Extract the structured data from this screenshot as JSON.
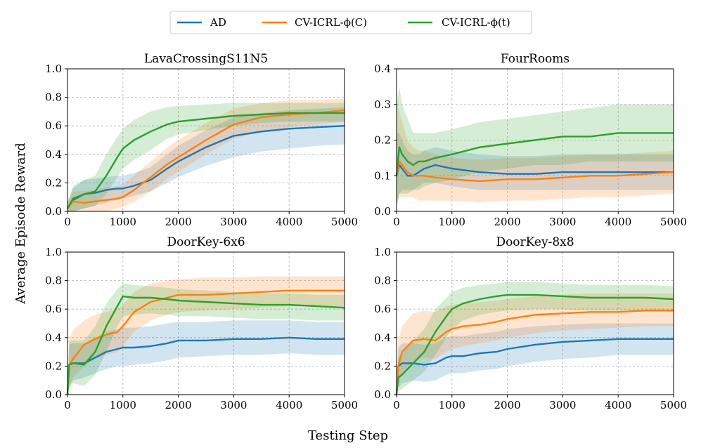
{
  "figure": {
    "xlabel": "Testing Step",
    "ylabel": "Average Episode Reward"
  },
  "legend": [
    {
      "name": "AD",
      "color": "#1f77b4"
    },
    {
      "name": "CV-ICRL-ϕ(C)",
      "color": "#ff7f0e"
    },
    {
      "name": "CV-ICRL-ϕ(t)",
      "color": "#2ca02c"
    }
  ],
  "chart_data": [
    {
      "type": "line",
      "title": "LavaCrossingS11N5",
      "xlim": [
        0,
        5000
      ],
      "ylim": [
        0,
        1.0
      ],
      "xticks": [
        "0",
        "1000",
        "2000",
        "3000",
        "4000",
        "5000"
      ],
      "yticks": [
        "0.0",
        "0.2",
        "0.4",
        "0.6",
        "0.8",
        "1.0"
      ],
      "x": [
        0,
        100,
        300,
        500,
        700,
        900,
        1000,
        1200,
        1500,
        1800,
        2000,
        2500,
        3000,
        3500,
        4000,
        4500,
        5000
      ],
      "series": [
        {
          "name": "AD",
          "color": "#1f77b4",
          "values": [
            0.02,
            0.08,
            0.12,
            0.13,
            0.15,
            0.16,
            0.16,
            0.18,
            0.22,
            0.3,
            0.35,
            0.45,
            0.53,
            0.56,
            0.58,
            0.59,
            0.6
          ],
          "lower": [
            0.0,
            0.0,
            0.02,
            0.04,
            0.06,
            0.08,
            0.09,
            0.11,
            0.14,
            0.2,
            0.24,
            0.32,
            0.38,
            0.42,
            0.44,
            0.46,
            0.47
          ],
          "upper": [
            0.06,
            0.16,
            0.22,
            0.23,
            0.24,
            0.25,
            0.25,
            0.27,
            0.31,
            0.4,
            0.46,
            0.57,
            0.66,
            0.69,
            0.71,
            0.72,
            0.73
          ]
        },
        {
          "name": "CV-ICRL-ϕ(C)",
          "color": "#ff7f0e",
          "values": [
            0.02,
            0.07,
            0.06,
            0.07,
            0.08,
            0.09,
            0.1,
            0.15,
            0.24,
            0.33,
            0.38,
            0.5,
            0.61,
            0.66,
            0.68,
            0.69,
            0.71
          ],
          "lower": [
            0.0,
            0.0,
            0.0,
            0.0,
            0.0,
            0.02,
            0.03,
            0.07,
            0.14,
            0.23,
            0.28,
            0.4,
            0.51,
            0.56,
            0.59,
            0.61,
            0.63
          ],
          "upper": [
            0.06,
            0.14,
            0.14,
            0.15,
            0.17,
            0.18,
            0.19,
            0.25,
            0.35,
            0.45,
            0.5,
            0.62,
            0.72,
            0.76,
            0.78,
            0.78,
            0.79
          ]
        },
        {
          "name": "CV-ICRL-ϕ(t)",
          "color": "#2ca02c",
          "values": [
            0.02,
            0.09,
            0.12,
            0.14,
            0.25,
            0.38,
            0.44,
            0.5,
            0.56,
            0.61,
            0.63,
            0.65,
            0.67,
            0.68,
            0.69,
            0.69,
            0.69
          ],
          "lower": [
            0.0,
            0.0,
            0.02,
            0.04,
            0.12,
            0.24,
            0.3,
            0.36,
            0.43,
            0.51,
            0.54,
            0.57,
            0.6,
            0.62,
            0.63,
            0.63,
            0.63
          ],
          "upper": [
            0.06,
            0.18,
            0.22,
            0.25,
            0.4,
            0.52,
            0.58,
            0.64,
            0.7,
            0.73,
            0.74,
            0.75,
            0.76,
            0.76,
            0.76,
            0.76,
            0.76
          ]
        }
      ]
    },
    {
      "type": "line",
      "title": "FourRooms",
      "xlim": [
        0,
        5000
      ],
      "ylim": [
        0,
        0.4
      ],
      "xticks": [
        "0",
        "1000",
        "2000",
        "3000",
        "4000",
        "5000"
      ],
      "yticks": [
        "0.0",
        "0.1",
        "0.2",
        "0.3",
        "0.4"
      ],
      "x": [
        0,
        50,
        100,
        200,
        300,
        400,
        500,
        700,
        1000,
        1500,
        2000,
        2500,
        3000,
        3500,
        4000,
        4500,
        5000
      ],
      "series": [
        {
          "name": "AD",
          "color": "#1f77b4",
          "values": [
            0.1,
            0.13,
            0.12,
            0.1,
            0.1,
            0.11,
            0.12,
            0.13,
            0.12,
            0.11,
            0.105,
            0.105,
            0.11,
            0.11,
            0.11,
            0.11,
            0.11
          ],
          "lower": [
            0.01,
            0.05,
            0.06,
            0.06,
            0.06,
            0.07,
            0.08,
            0.08,
            0.07,
            0.06,
            0.06,
            0.06,
            0.06,
            0.06,
            0.06,
            0.06,
            0.06
          ],
          "upper": [
            0.22,
            0.22,
            0.2,
            0.17,
            0.16,
            0.16,
            0.17,
            0.18,
            0.17,
            0.16,
            0.155,
            0.155,
            0.16,
            0.16,
            0.16,
            0.16,
            0.16
          ]
        },
        {
          "name": "CV-ICRL-ϕ(C)",
          "color": "#ff7f0e",
          "values": [
            0.1,
            0.14,
            0.13,
            0.11,
            0.1,
            0.1,
            0.1,
            0.095,
            0.09,
            0.085,
            0.09,
            0.09,
            0.095,
            0.1,
            0.1,
            0.105,
            0.11
          ],
          "lower": [
            0.02,
            0.04,
            0.04,
            0.04,
            0.04,
            0.03,
            0.03,
            0.03,
            0.03,
            0.025,
            0.03,
            0.03,
            0.035,
            0.04,
            0.04,
            0.045,
            0.05
          ],
          "upper": [
            0.3,
            0.28,
            0.25,
            0.2,
            0.18,
            0.17,
            0.17,
            0.16,
            0.15,
            0.145,
            0.15,
            0.15,
            0.155,
            0.16,
            0.16,
            0.165,
            0.17
          ]
        },
        {
          "name": "CV-ICRL-ϕ(t)",
          "color": "#2ca02c",
          "values": [
            0.1,
            0.18,
            0.16,
            0.14,
            0.13,
            0.14,
            0.14,
            0.15,
            0.16,
            0.18,
            0.19,
            0.2,
            0.21,
            0.21,
            0.22,
            0.22,
            0.22
          ],
          "lower": [
            0.02,
            0.05,
            0.05,
            0.05,
            0.06,
            0.06,
            0.07,
            0.08,
            0.09,
            0.11,
            0.12,
            0.13,
            0.13,
            0.14,
            0.14,
            0.14,
            0.14
          ],
          "upper": [
            0.3,
            0.35,
            0.3,
            0.26,
            0.22,
            0.22,
            0.22,
            0.22,
            0.23,
            0.25,
            0.26,
            0.27,
            0.28,
            0.29,
            0.3,
            0.3,
            0.3
          ]
        }
      ]
    },
    {
      "type": "line",
      "title": "DoorKey-6x6",
      "xlim": [
        0,
        5000
      ],
      "ylim": [
        0,
        1.0
      ],
      "xticks": [
        "0",
        "1000",
        "2000",
        "3000",
        "4000",
        "5000"
      ],
      "yticks": [
        "0.0",
        "0.2",
        "0.4",
        "0.6",
        "0.8",
        "1.0"
      ],
      "x": [
        0,
        30,
        100,
        300,
        500,
        700,
        900,
        1000,
        1200,
        1500,
        1800,
        2000,
        2500,
        3000,
        3500,
        4000,
        4500,
        5000
      ],
      "series": [
        {
          "name": "AD",
          "color": "#1f77b4",
          "values": [
            0.0,
            0.21,
            0.22,
            0.22,
            0.26,
            0.3,
            0.32,
            0.33,
            0.33,
            0.34,
            0.36,
            0.38,
            0.38,
            0.39,
            0.39,
            0.4,
            0.39,
            0.39
          ],
          "lower": [
            0.0,
            0.05,
            0.1,
            0.12,
            0.15,
            0.18,
            0.2,
            0.2,
            0.21,
            0.22,
            0.24,
            0.26,
            0.27,
            0.28,
            0.28,
            0.29,
            0.28,
            0.28
          ],
          "upper": [
            0.0,
            0.35,
            0.36,
            0.36,
            0.4,
            0.44,
            0.46,
            0.47,
            0.47,
            0.48,
            0.5,
            0.51,
            0.51,
            0.52,
            0.52,
            0.52,
            0.51,
            0.51
          ]
        },
        {
          "name": "CV-ICRL-ϕ(C)",
          "color": "#ff7f0e",
          "values": [
            0.0,
            0.21,
            0.25,
            0.35,
            0.39,
            0.42,
            0.44,
            0.48,
            0.58,
            0.65,
            0.68,
            0.7,
            0.7,
            0.71,
            0.72,
            0.73,
            0.73,
            0.73
          ],
          "lower": [
            0.0,
            0.05,
            0.12,
            0.2,
            0.25,
            0.28,
            0.3,
            0.34,
            0.44,
            0.52,
            0.56,
            0.58,
            0.59,
            0.6,
            0.61,
            0.62,
            0.62,
            0.62
          ],
          "upper": [
            0.0,
            0.4,
            0.45,
            0.52,
            0.56,
            0.58,
            0.6,
            0.63,
            0.72,
            0.78,
            0.8,
            0.81,
            0.82,
            0.82,
            0.83,
            0.83,
            0.83,
            0.83
          ]
        },
        {
          "name": "CV-ICRL-ϕ(t)",
          "color": "#2ca02c",
          "values": [
            0.0,
            0.21,
            0.22,
            0.21,
            0.3,
            0.48,
            0.62,
            0.69,
            0.68,
            0.68,
            0.67,
            0.66,
            0.65,
            0.64,
            0.63,
            0.63,
            0.62,
            0.61
          ],
          "lower": [
            0.0,
            0.05,
            0.08,
            0.06,
            0.14,
            0.3,
            0.48,
            0.55,
            0.56,
            0.57,
            0.56,
            0.55,
            0.55,
            0.54,
            0.53,
            0.53,
            0.52,
            0.52
          ],
          "upper": [
            0.0,
            0.38,
            0.38,
            0.38,
            0.48,
            0.64,
            0.74,
            0.78,
            0.77,
            0.76,
            0.75,
            0.74,
            0.73,
            0.72,
            0.71,
            0.71,
            0.7,
            0.7
          ]
        }
      ]
    },
    {
      "type": "line",
      "title": "DoorKey-8x8",
      "xlim": [
        0,
        5000
      ],
      "ylim": [
        0,
        1.0
      ],
      "xticks": [
        "0",
        "1000",
        "2000",
        "3000",
        "4000",
        "5000"
      ],
      "yticks": [
        "0.0",
        "0.2",
        "0.4",
        "0.6",
        "0.8",
        "1.0"
      ],
      "x": [
        0,
        30,
        100,
        300,
        500,
        700,
        900,
        1000,
        1200,
        1500,
        1800,
        2000,
        2500,
        3000,
        3500,
        4000,
        4500,
        5000
      ],
      "series": [
        {
          "name": "AD",
          "color": "#1f77b4",
          "values": [
            0.0,
            0.2,
            0.22,
            0.22,
            0.21,
            0.22,
            0.26,
            0.27,
            0.27,
            0.29,
            0.3,
            0.32,
            0.35,
            0.37,
            0.38,
            0.39,
            0.39,
            0.39
          ],
          "lower": [
            0.0,
            0.05,
            0.08,
            0.1,
            0.09,
            0.1,
            0.14,
            0.15,
            0.15,
            0.17,
            0.18,
            0.2,
            0.23,
            0.25,
            0.26,
            0.28,
            0.28,
            0.28
          ],
          "upper": [
            0.0,
            0.33,
            0.36,
            0.36,
            0.35,
            0.36,
            0.4,
            0.41,
            0.41,
            0.43,
            0.44,
            0.46,
            0.48,
            0.49,
            0.5,
            0.5,
            0.5,
            0.5
          ]
        },
        {
          "name": "CV-ICRL-ϕ(C)",
          "color": "#ff7f0e",
          "values": [
            0.0,
            0.2,
            0.3,
            0.38,
            0.39,
            0.38,
            0.44,
            0.46,
            0.48,
            0.49,
            0.51,
            0.53,
            0.56,
            0.57,
            0.58,
            0.58,
            0.59,
            0.59
          ],
          "lower": [
            0.0,
            0.05,
            0.15,
            0.24,
            0.26,
            0.25,
            0.3,
            0.32,
            0.34,
            0.36,
            0.38,
            0.4,
            0.43,
            0.45,
            0.46,
            0.47,
            0.48,
            0.48
          ],
          "upper": [
            0.0,
            0.38,
            0.48,
            0.57,
            0.59,
            0.58,
            0.62,
            0.63,
            0.64,
            0.65,
            0.66,
            0.67,
            0.69,
            0.7,
            0.71,
            0.71,
            0.71,
            0.71
          ]
        },
        {
          "name": "CV-ICRL-ϕ(t)",
          "color": "#2ca02c",
          "values": [
            0.0,
            0.12,
            0.14,
            0.22,
            0.3,
            0.44,
            0.55,
            0.6,
            0.64,
            0.67,
            0.69,
            0.7,
            0.7,
            0.69,
            0.68,
            0.68,
            0.68,
            0.67
          ],
          "lower": [
            0.0,
            0.02,
            0.04,
            0.1,
            0.16,
            0.28,
            0.4,
            0.46,
            0.52,
            0.56,
            0.58,
            0.59,
            0.6,
            0.6,
            0.59,
            0.59,
            0.59,
            0.58
          ],
          "upper": [
            0.0,
            0.26,
            0.3,
            0.38,
            0.46,
            0.6,
            0.68,
            0.72,
            0.75,
            0.77,
            0.78,
            0.79,
            0.79,
            0.78,
            0.77,
            0.77,
            0.77,
            0.76
          ]
        }
      ]
    }
  ]
}
